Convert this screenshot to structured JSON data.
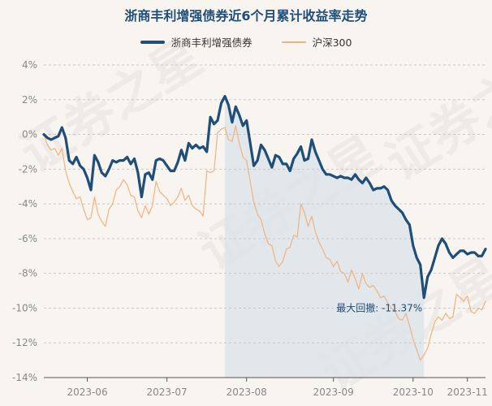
{
  "chart_data": {
    "type": "line",
    "title": "浙商丰利增强债券近6个月累计收益率走势",
    "ylim": [
      -14,
      4
    ],
    "yticks": [
      4,
      2,
      0,
      -2,
      -4,
      -6,
      -8,
      -10,
      -12,
      -14
    ],
    "ytick_labels": [
      "4%",
      "2%",
      "0%",
      "-2%",
      "-4%",
      "-6%",
      "-8%",
      "-10%",
      "-12%",
      "-14%"
    ],
    "xtick_labels": [
      "2023-06",
      "2023-07",
      "2023-08",
      "2023-09",
      "2023-10",
      "2023-11"
    ],
    "legend_position": "top-center",
    "grid": "horizontal-dashed",
    "series": [
      {
        "name": "浙商丰利增强债券",
        "color": "#1f4e79",
        "values": [
          0,
          -0.2,
          -0.3,
          -0.2,
          -0.1,
          0.4,
          -0.2,
          -1.5,
          -1.7,
          -1.3,
          -1.8,
          -2.0,
          -2.5,
          -3.2,
          -1.2,
          -1.6,
          -2.2,
          -2.4,
          -2.0,
          -1.5,
          -1.6,
          -1.5,
          -1.5,
          -1.3,
          -1.7,
          -1.4,
          -2.2,
          -3.6,
          -2.3,
          -2.2,
          -2.6,
          -1.5,
          -1.4,
          -1.5,
          -1.8,
          -2.1,
          -2.1,
          -1.6,
          -0.9,
          -1.5,
          -0.5,
          -0.8,
          -0.6,
          -0.8,
          -0.7,
          -1.0,
          1.0,
          0.6,
          0.8,
          1.8,
          2.2,
          1.7,
          0.7,
          1.6,
          1.1,
          0.5,
          0.8,
          -0.5,
          -1.8,
          -1.5,
          -0.6,
          -0.9,
          -1.4,
          -1.9,
          -1.2,
          -1.3,
          -1.7,
          -1.7,
          -2.1,
          -1.4,
          -1.1,
          -0.7,
          -1.5,
          -1.4,
          -0.3,
          -1.0,
          -1.5,
          -2.0,
          -2.3,
          -2.3,
          -2.4,
          -2.5,
          -2.4,
          -2.5,
          -2.5,
          -2.6,
          -2.3,
          -2.6,
          -2.8,
          -2.5,
          -2.8,
          -3.2,
          -3.1,
          -3.1,
          -3.0,
          -3.2,
          -3.8,
          -4.1,
          -4.3,
          -4.5,
          -4.9,
          -5.2,
          -6.4,
          -7.1,
          -7.5,
          -9.4,
          -8.2,
          -7.8,
          -7.1,
          -6.4,
          -6.0,
          -6.3,
          -6.8,
          -7.1,
          -6.9,
          -6.7,
          -6.7,
          -6.9,
          -6.8,
          -6.8,
          -7.0,
          -7.0,
          -6.6
        ],
        "note_label": "最大回撤: -11.37%"
      },
      {
        "name": "沪深300",
        "color": "#f2b27d",
        "values": [
          0,
          -0.6,
          -0.9,
          -0.8,
          -1.2,
          -0.8,
          -2.1,
          -2.8,
          -3.3,
          -3.7,
          -3.6,
          -4.3,
          -4.9,
          -4.8,
          -3.6,
          -4.6,
          -5.0,
          -5.3,
          -4.3,
          -4.0,
          -3.2,
          -3.0,
          -2.6,
          -2.9,
          -3.5,
          -3.6,
          -4.4,
          -4.8,
          -4.1,
          -4.6,
          -4.1,
          -2.7,
          -3.3,
          -3.5,
          -3.7,
          -4.1,
          -3.9,
          -3.6,
          -3.1,
          -3.8,
          -3.5,
          -4.1,
          -4.3,
          -4.4,
          -4.7,
          -2.1,
          -2.2,
          -2.1,
          0.1,
          0.3,
          0.4,
          -0.3,
          -0.4,
          0.5,
          -0.5,
          -1.3,
          -1.5,
          -2.7,
          -3.9,
          -4.6,
          -4.9,
          -5.7,
          -6.3,
          -6.4,
          -7.3,
          -7.6,
          -7.3,
          -6.6,
          -6.5,
          -5.8,
          -5.9,
          -4.0,
          -4.5,
          -5.3,
          -4.7,
          -5.6,
          -6.2,
          -6.6,
          -7.1,
          -7.2,
          -7.6,
          -7.3,
          -7.9,
          -8.0,
          -8.5,
          -7.8,
          -8.3,
          -8.9,
          -8.0,
          -8.6,
          -8.8,
          -8.7,
          -9.0,
          -9.4,
          -9.3,
          -9.7,
          -10.0,
          -10.2,
          -10.6,
          -10.7,
          -10.3,
          -11.0,
          -11.8,
          -12.4,
          -13.0,
          -12.7,
          -12.3,
          -11.5,
          -10.8,
          -10.5,
          -10.7,
          -10.3,
          -10.6,
          -10.5,
          -9.2,
          -9.4,
          -9.6,
          -9.3,
          -10.2,
          -10.3,
          -10.0,
          -10.1,
          -9.6
        ]
      }
    ],
    "drawdown_shade": {
      "start_index": 50,
      "end_index": 105,
      "color": "#dde4ea"
    }
  },
  "watermark": "证券之星"
}
